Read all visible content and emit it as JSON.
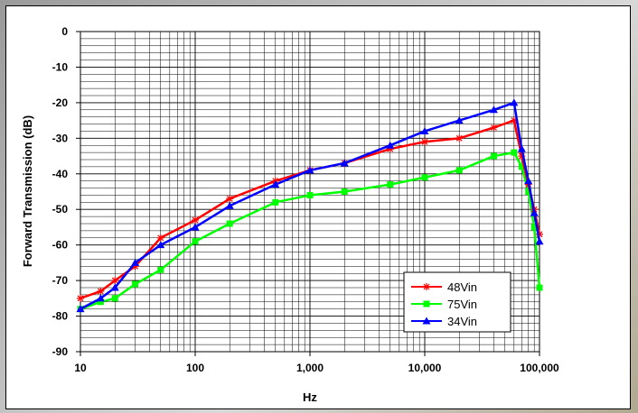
{
  "chart_data": {
    "type": "line",
    "title": "",
    "xlabel": "Hz",
    "ylabel": "Forward Transmission (dB)",
    "xscale": "log",
    "xlim": [
      10,
      100000
    ],
    "ylim": [
      -90,
      0
    ],
    "x_ticks": [
      10,
      100,
      1000,
      10000,
      100000
    ],
    "x_tick_labels": [
      "10",
      "100",
      "1,000",
      "10,000",
      "100,000"
    ],
    "y_ticks": [
      0,
      -10,
      -20,
      -30,
      -40,
      -50,
      -60,
      -70,
      -80,
      -90
    ],
    "y_tick_labels": [
      "0",
      "-10",
      "-20",
      "-30",
      "-40",
      "-50",
      "-60",
      "-70",
      "-80",
      "-90"
    ],
    "grid": true,
    "legend_position": "bottom-right",
    "x": [
      10,
      15,
      20,
      30,
      50,
      100,
      200,
      500,
      1000,
      2000,
      5000,
      10000,
      20000,
      40000,
      60000,
      70000,
      80000,
      90000,
      100000
    ],
    "series": [
      {
        "name": "48Vin",
        "color": "#ff0000",
        "marker": "asterisk",
        "values": [
          -75,
          -73,
          -70,
          -66,
          -58,
          -53,
          -47,
          -42,
          -39,
          -37,
          -33,
          -31,
          -30,
          -27,
          -25,
          -35,
          -43,
          -50,
          -57
        ]
      },
      {
        "name": "75Vin",
        "color": "#00ff00",
        "marker": "square",
        "values": [
          -78,
          -76,
          -75,
          -71,
          -67,
          -59,
          -54,
          -48,
          -46,
          -45,
          -43,
          -41,
          -39,
          -35,
          -34,
          -38,
          -45,
          -55,
          -72
        ]
      },
      {
        "name": "34Vin",
        "color": "#0000ff",
        "marker": "triangle",
        "values": [
          -78,
          -75,
          -72,
          -65,
          -60,
          -55,
          -49,
          -43,
          -39,
          -37,
          -32,
          -28,
          -25,
          -22,
          -20,
          -33,
          -42,
          -51,
          -59
        ]
      }
    ]
  }
}
